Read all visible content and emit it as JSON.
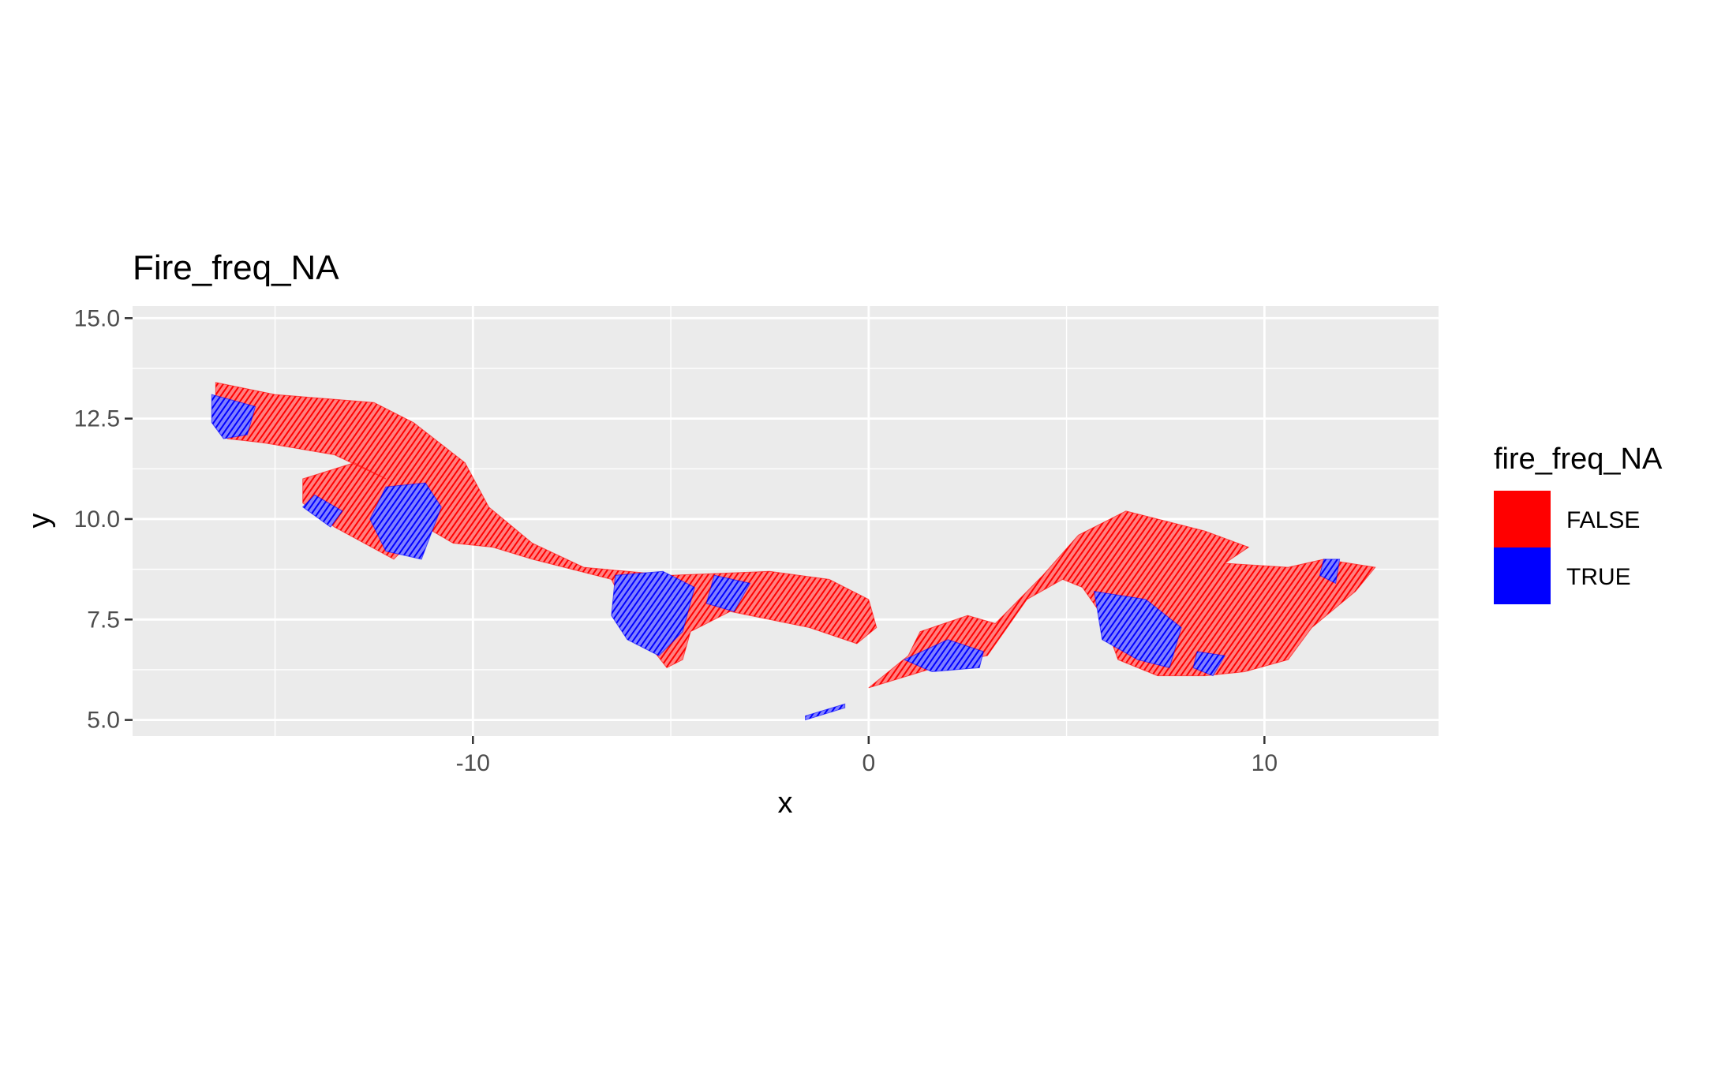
{
  "chart_data": {
    "type": "heatmap",
    "title": "Fire_freq_NA",
    "xlabel": "x",
    "ylabel": "y",
    "xlim": [
      -18.6,
      14.4
    ],
    "ylim": [
      4.6,
      15.3
    ],
    "x_ticks": [
      -10,
      0,
      10
    ],
    "x_tick_labels": [
      "-10",
      "0",
      "10"
    ],
    "y_ticks": [
      5.0,
      7.5,
      10.0,
      12.5,
      15.0
    ],
    "y_tick_labels": [
      "5.0",
      "7.5",
      "10.0",
      "12.5",
      "15.0"
    ],
    "grid": true,
    "panel_background": "#ebebeb",
    "legend": {
      "title": "fire_freq_NA",
      "position": "right",
      "entries": [
        {
          "label": "FALSE",
          "color": "#ff0000"
        },
        {
          "label": "TRUE",
          "color": "#0000ff"
        }
      ]
    },
    "regions": [
      {
        "label": "FALSE",
        "color": "#ff0000",
        "points": [
          [
            -16.5,
            13.4
          ],
          [
            -15,
            13.1
          ],
          [
            -12.5,
            12.9
          ],
          [
            -11.5,
            12.4
          ],
          [
            -10.2,
            11.4
          ],
          [
            -9.6,
            10.3
          ],
          [
            -8.5,
            9.4
          ],
          [
            -7.2,
            8.8
          ],
          [
            -5,
            8.6
          ],
          [
            -2.5,
            8.7
          ],
          [
            -1,
            8.5
          ],
          [
            0,
            8.0
          ],
          [
            0.2,
            7.3
          ],
          [
            -0.3,
            6.9
          ],
          [
            -1.5,
            7.3
          ],
          [
            -3.5,
            7.7
          ],
          [
            -4.5,
            7.2
          ],
          [
            -4.7,
            6.5
          ],
          [
            -5.1,
            6.3
          ],
          [
            -5.9,
            7.3
          ],
          [
            -6.5,
            8.5
          ],
          [
            -8.5,
            9.0
          ],
          [
            -9.5,
            9.3
          ],
          [
            -10.5,
            9.4
          ],
          [
            -11.2,
            9.8
          ],
          [
            -12,
            9.0
          ],
          [
            -13.5,
            9.8
          ],
          [
            -14.3,
            10.4
          ],
          [
            -14.3,
            11.0
          ],
          [
            -13,
            11.4
          ],
          [
            -12.2,
            11.0
          ],
          [
            -13.5,
            11.6
          ],
          [
            -15.3,
            11.9
          ],
          [
            -16.2,
            12.0
          ],
          [
            -16.5,
            12.3
          ]
        ]
      },
      {
        "label": "FALSE",
        "color": "#ff0000",
        "points": [
          [
            0,
            5.8
          ],
          [
            1.0,
            6.6
          ],
          [
            1.3,
            7.2
          ],
          [
            2.5,
            7.6
          ],
          [
            3.2,
            7.4
          ],
          [
            4.4,
            8.6
          ],
          [
            5.3,
            9.6
          ],
          [
            6.5,
            10.2
          ],
          [
            8.5,
            9.7
          ],
          [
            9.6,
            9.3
          ],
          [
            9.0,
            8.9
          ],
          [
            10.6,
            8.8
          ],
          [
            11.5,
            9.0
          ],
          [
            12.8,
            8.8
          ],
          [
            12.3,
            8.2
          ],
          [
            11.2,
            7.3
          ],
          [
            10.6,
            6.5
          ],
          [
            9.5,
            6.2
          ],
          [
            8.5,
            6.1
          ],
          [
            7.3,
            6.1
          ],
          [
            6.3,
            6.5
          ],
          [
            5.9,
            7.6
          ],
          [
            5.4,
            8.3
          ],
          [
            4.9,
            8.5
          ],
          [
            4.0,
            8.0
          ],
          [
            3.0,
            6.6
          ],
          [
            2.0,
            6.4
          ],
          [
            1.0,
            6.1
          ]
        ]
      },
      {
        "label": "TRUE",
        "color": "#0000ff",
        "points": [
          [
            -16.6,
            13.1
          ],
          [
            -15.5,
            12.8
          ],
          [
            -15.7,
            12.1
          ],
          [
            -16.3,
            12.0
          ],
          [
            -16.6,
            12.4
          ]
        ]
      },
      {
        "label": "TRUE",
        "color": "#0000ff",
        "points": [
          [
            -12.2,
            10.8
          ],
          [
            -11.2,
            10.9
          ],
          [
            -10.8,
            10.3
          ],
          [
            -11.3,
            9.0
          ],
          [
            -12.2,
            9.2
          ],
          [
            -12.6,
            10.0
          ]
        ]
      },
      {
        "label": "TRUE",
        "color": "#0000ff",
        "points": [
          [
            -14.0,
            10.6
          ],
          [
            -13.3,
            10.2
          ],
          [
            -13.6,
            9.8
          ],
          [
            -14.3,
            10.3
          ]
        ]
      },
      {
        "label": "TRUE",
        "color": "#0000ff",
        "points": [
          [
            -6.4,
            8.6
          ],
          [
            -5.2,
            8.7
          ],
          [
            -4.4,
            8.3
          ],
          [
            -4.7,
            7.2
          ],
          [
            -5.3,
            6.6
          ],
          [
            -6.1,
            7.0
          ],
          [
            -6.5,
            7.6
          ]
        ]
      },
      {
        "label": "TRUE",
        "color": "#0000ff",
        "points": [
          [
            -3.9,
            8.6
          ],
          [
            -3.0,
            8.4
          ],
          [
            -3.4,
            7.7
          ],
          [
            -4.1,
            7.9
          ]
        ]
      },
      {
        "label": "TRUE",
        "color": "#0000ff",
        "points": [
          [
            0.9,
            6.5
          ],
          [
            2.0,
            7.0
          ],
          [
            2.9,
            6.7
          ],
          [
            2.8,
            6.3
          ],
          [
            1.6,
            6.2
          ]
        ]
      },
      {
        "label": "TRUE",
        "color": "#0000ff",
        "points": [
          [
            5.7,
            8.2
          ],
          [
            7.0,
            8.0
          ],
          [
            7.9,
            7.3
          ],
          [
            7.6,
            6.3
          ],
          [
            6.8,
            6.5
          ],
          [
            5.9,
            7.0
          ]
        ]
      },
      {
        "label": "TRUE",
        "color": "#0000ff",
        "points": [
          [
            8.3,
            6.7
          ],
          [
            9.0,
            6.6
          ],
          [
            8.7,
            6.1
          ],
          [
            8.2,
            6.3
          ]
        ]
      },
      {
        "label": "TRUE",
        "color": "#0000ff",
        "points": [
          [
            -1.6,
            5.1
          ],
          [
            -0.6,
            5.4
          ],
          [
            -0.6,
            5.3
          ],
          [
            -1.6,
            5.0
          ]
        ]
      },
      {
        "label": "TRUE",
        "color": "#0000ff",
        "points": [
          [
            11.5,
            9.0
          ],
          [
            11.9,
            9.0
          ],
          [
            11.8,
            8.4
          ],
          [
            11.4,
            8.6
          ]
        ]
      }
    ]
  }
}
